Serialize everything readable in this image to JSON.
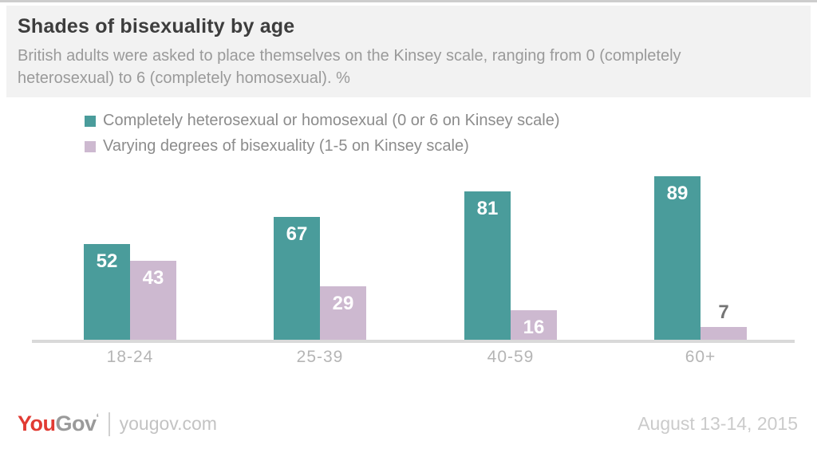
{
  "header": {
    "title": "Shades of bisexuality by age",
    "subtitle": "British adults were asked to place themselves on the Kinsey scale, ranging from 0 (completely heterosexual) to 6 (completely homosexual). %"
  },
  "legend": {
    "items": [
      {
        "label": "Completely heterosexual or homosexual (0 or 6 on Kinsey scale)",
        "color": "#4a9c9b"
      },
      {
        "label": "Varying degrees of bisexuality (1-5 on Kinsey scale)",
        "color": "#cdb9d0"
      }
    ]
  },
  "chart_data": {
    "type": "bar",
    "title": "Shades of bisexuality by age",
    "unit": "%",
    "categories": [
      "18-24",
      "25-39",
      "40-59",
      "60+"
    ],
    "series": [
      {
        "name": "Completely heterosexual or homosexual (0 or 6 on Kinsey scale)",
        "color": "#4a9c9b",
        "values": [
          52,
          67,
          81,
          89
        ]
      },
      {
        "name": "Varying degrees of bisexuality (1-5 on Kinsey scale)",
        "color": "#cdb9d0",
        "values": [
          43,
          29,
          16,
          7
        ]
      }
    ],
    "ylim": [
      0,
      100
    ],
    "grid": false,
    "legend_position": "top-left",
    "value_labels": "on bars, white inside bar; gray above bar when bar too short"
  },
  "footer": {
    "logo_you": "You",
    "logo_gov": "Gov",
    "site": "yougov.com",
    "date": "August 13-14, 2015"
  }
}
